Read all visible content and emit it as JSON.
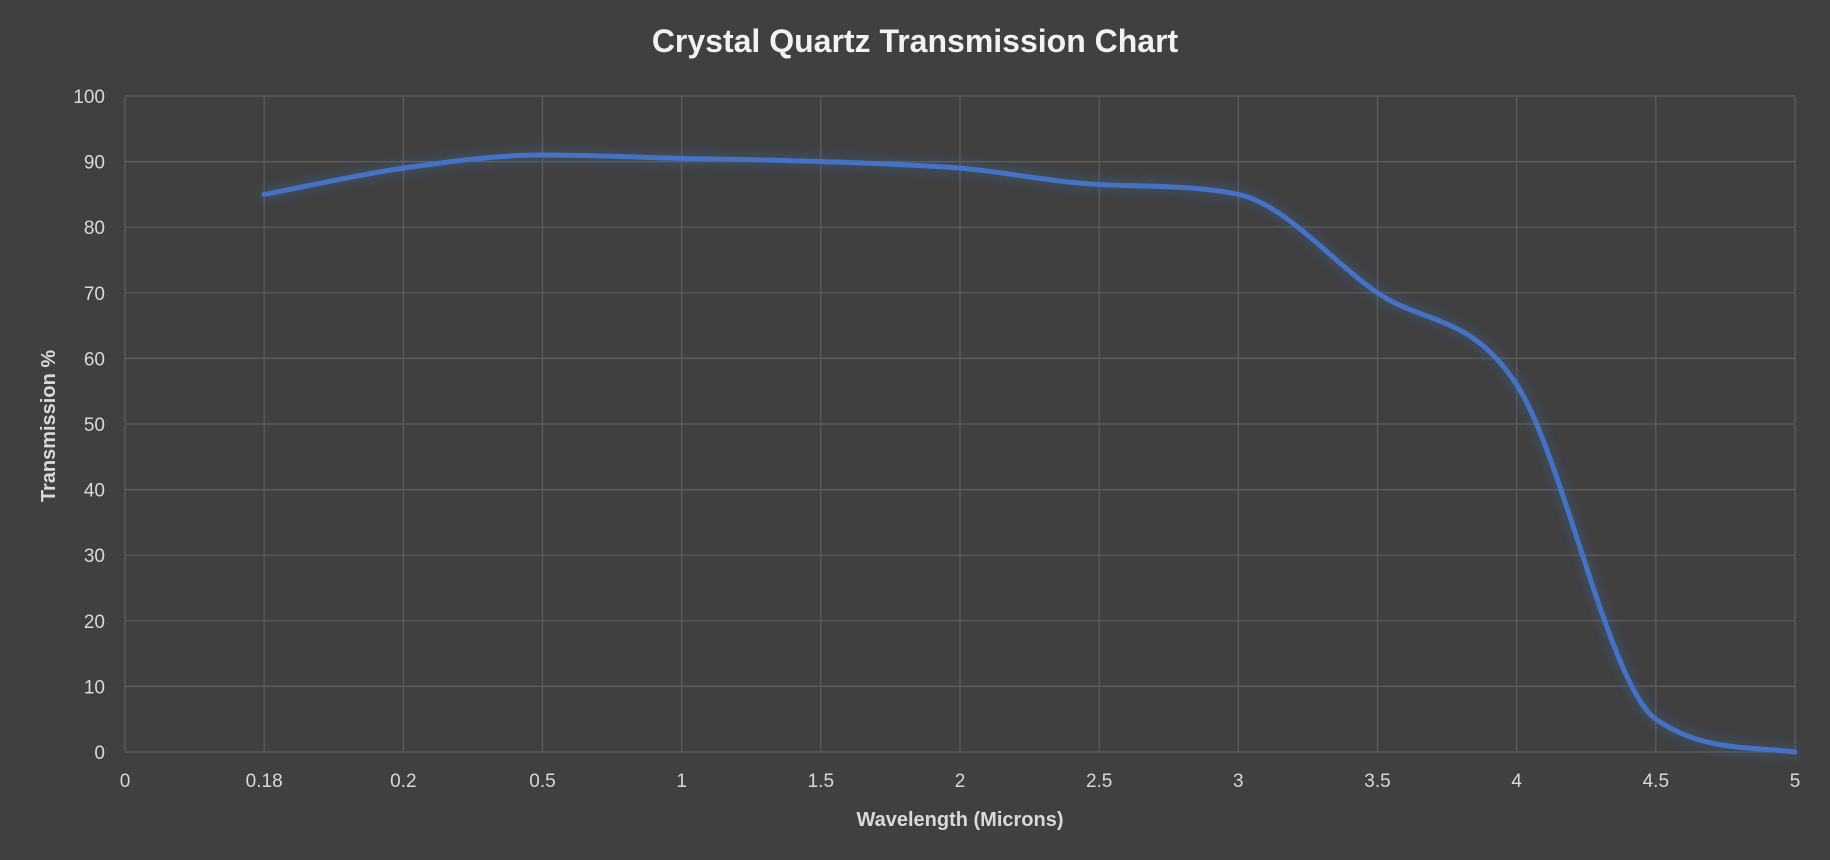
{
  "chart_data": {
    "type": "line",
    "title": "Crystal Quartz Transmission Chart",
    "xlabel": "Wavelength (Microns)",
    "ylabel": "Transmission %",
    "categories": [
      "0",
      "0.18",
      "0.2",
      "0.5",
      "1",
      "1.5",
      "2",
      "2.5",
      "3",
      "3.5",
      "4",
      "4.5",
      "5"
    ],
    "ylim": [
      0,
      100
    ],
    "yticks": [
      0,
      10,
      20,
      30,
      40,
      50,
      60,
      70,
      80,
      90,
      100
    ],
    "grid": true,
    "legend": "none",
    "series": [
      {
        "color": "#4472c4",
        "points": [
          {
            "x": "0.18",
            "y": 85
          },
          {
            "x": "0.2",
            "y": 89
          },
          {
            "x": "0.5",
            "y": 91
          },
          {
            "x": "1",
            "y": 90.5
          },
          {
            "x": "1.5",
            "y": 90
          },
          {
            "x": "2",
            "y": 89
          },
          {
            "x": "2.5",
            "y": 86.5
          },
          {
            "x": "3",
            "y": 85
          },
          {
            "x": "3.5",
            "y": 70
          },
          {
            "x": "4",
            "y": 56
          },
          {
            "x": "4.5",
            "y": 5
          },
          {
            "x": "5",
            "y": 0
          }
        ]
      }
    ]
  }
}
